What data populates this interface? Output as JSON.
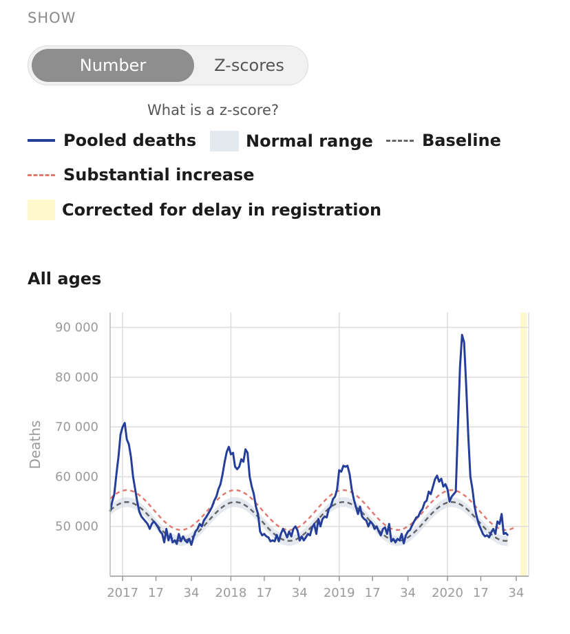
{
  "show_label": "SHOW",
  "toggle": {
    "options": [
      "Number",
      "Z-scores"
    ],
    "selected": "Number"
  },
  "zscore_link": "What is a z-score?",
  "legend": {
    "pooled": "Pooled deaths",
    "normal": "Normal range",
    "baseline": "Baseline",
    "increase": "Substantial increase",
    "corrected": "Corrected for delay in registration"
  },
  "colors": {
    "pooled": "#243e9a",
    "normal": "#e4e8ef",
    "baseline": "#666666",
    "increase": "#e07a70",
    "corrected": "#fff8cc",
    "grid": "#dddddd"
  },
  "chart_title": "All ages",
  "chart_data": {
    "type": "line",
    "title": "All ages",
    "ylabel": "Deaths",
    "xlabel": "",
    "ylim": [
      40000,
      93000
    ],
    "y_ticks": [
      50000,
      60000,
      70000,
      80000,
      90000
    ],
    "y_tick_labels": [
      "50 000",
      "60 000",
      "70 000",
      "80 000",
      "90 000"
    ],
    "x_weeks_per_year": 52,
    "x_ticks": [
      {
        "label": "2017",
        "week": 1
      },
      {
        "label": "17",
        "week": 17
      },
      {
        "label": "34",
        "week": 34
      },
      {
        "label": "2018",
        "week": 53
      },
      {
        "label": "17",
        "week": 69
      },
      {
        "label": "34",
        "week": 86
      },
      {
        "label": "2019",
        "week": 105
      },
      {
        "label": "17",
        "week": 121
      },
      {
        "label": "34",
        "week": 138
      },
      {
        "label": "2020",
        "week": 157
      },
      {
        "label": "17",
        "week": 173
      },
      {
        "label": "34",
        "week": 190
      }
    ],
    "year_gridlines_weeks": [
      1,
      53,
      105,
      157
    ],
    "corrected_range_weeks": [
      192,
      195
    ],
    "series": [
      {
        "name": "Pooled deaths",
        "key": "pooled",
        "points": [
          [
            -5,
            53000
          ],
          [
            -4,
            55000
          ],
          [
            -3,
            56500
          ],
          [
            -2,
            60500
          ],
          [
            -1,
            64000
          ],
          [
            0,
            68500
          ],
          [
            1,
            70000
          ],
          [
            2,
            70800
          ],
          [
            3,
            67500
          ],
          [
            4,
            66500
          ],
          [
            5,
            64000
          ],
          [
            6,
            60000
          ],
          [
            7,
            57500
          ],
          [
            8,
            55000
          ],
          [
            9,
            53000
          ],
          [
            10,
            52000
          ],
          [
            11,
            51500
          ],
          [
            12,
            51000
          ],
          [
            13,
            50500
          ],
          [
            14,
            49500
          ],
          [
            15,
            50500
          ],
          [
            16,
            51000
          ],
          [
            17,
            50500
          ],
          [
            18,
            49800
          ],
          [
            19,
            49000
          ],
          [
            20,
            48500
          ],
          [
            21,
            46800
          ],
          [
            22,
            49500
          ],
          [
            23,
            47200
          ],
          [
            24,
            48500
          ],
          [
            25,
            46800
          ],
          [
            26,
            47200
          ],
          [
            27,
            46500
          ],
          [
            28,
            48500
          ],
          [
            29,
            47000
          ],
          [
            30,
            48000
          ],
          [
            31,
            47200
          ],
          [
            32,
            46800
          ],
          [
            33,
            47500
          ],
          [
            34,
            46300
          ],
          [
            35,
            47800
          ],
          [
            36,
            49000
          ],
          [
            37,
            49500
          ],
          [
            38,
            50500
          ],
          [
            39,
            50000
          ],
          [
            40,
            51200
          ],
          [
            41,
            51800
          ],
          [
            42,
            52500
          ],
          [
            43,
            53200
          ],
          [
            44,
            54000
          ],
          [
            45,
            55200
          ],
          [
            46,
            56000
          ],
          [
            47,
            57500
          ],
          [
            48,
            58500
          ],
          [
            49,
            60500
          ],
          [
            50,
            63000
          ],
          [
            51,
            65000
          ],
          [
            52,
            66000
          ],
          [
            53,
            64500
          ],
          [
            54,
            64800
          ],
          [
            55,
            62000
          ],
          [
            56,
            61500
          ],
          [
            57,
            62000
          ],
          [
            58,
            63500
          ],
          [
            59,
            63000
          ],
          [
            60,
            65500
          ],
          [
            61,
            64800
          ],
          [
            62,
            60000
          ],
          [
            63,
            58000
          ],
          [
            64,
            56500
          ],
          [
            65,
            54000
          ],
          [
            66,
            52500
          ],
          [
            67,
            49000
          ],
          [
            68,
            48200
          ],
          [
            69,
            48500
          ],
          [
            70,
            48000
          ],
          [
            71,
            47800
          ],
          [
            72,
            47000
          ],
          [
            73,
            47200
          ],
          [
            74,
            47000
          ],
          [
            75,
            48300
          ],
          [
            76,
            47000
          ],
          [
            77,
            48500
          ],
          [
            78,
            49500
          ],
          [
            79,
            48800
          ],
          [
            80,
            47800
          ],
          [
            81,
            49000
          ],
          [
            82,
            48000
          ],
          [
            83,
            49500
          ],
          [
            84,
            50000
          ],
          [
            85,
            49200
          ],
          [
            86,
            47200
          ],
          [
            87,
            48000
          ],
          [
            88,
            47200
          ],
          [
            89,
            47800
          ],
          [
            90,
            48500
          ],
          [
            91,
            48200
          ],
          [
            92,
            49800
          ],
          [
            93,
            50500
          ],
          [
            94,
            48500
          ],
          [
            95,
            51500
          ],
          [
            96,
            50000
          ],
          [
            97,
            51500
          ],
          [
            98,
            52000
          ],
          [
            99,
            51800
          ],
          [
            100,
            53500
          ],
          [
            101,
            54000
          ],
          [
            102,
            55500
          ],
          [
            103,
            56000
          ],
          [
            104,
            57500
          ],
          [
            105,
            61300
          ],
          [
            106,
            61000
          ],
          [
            107,
            62200
          ],
          [
            108,
            62000
          ],
          [
            109,
            62200
          ],
          [
            110,
            60500
          ],
          [
            111,
            57500
          ],
          [
            112,
            55500
          ],
          [
            113,
            54000
          ],
          [
            114,
            52500
          ],
          [
            115,
            54000
          ],
          [
            116,
            52000
          ],
          [
            117,
            51500
          ],
          [
            118,
            51200
          ],
          [
            119,
            50000
          ],
          [
            120,
            51000
          ],
          [
            121,
            50500
          ],
          [
            122,
            49500
          ],
          [
            123,
            50000
          ],
          [
            124,
            49000
          ],
          [
            125,
            48200
          ],
          [
            126,
            49500
          ],
          [
            127,
            49800
          ],
          [
            128,
            48500
          ],
          [
            129,
            50500
          ],
          [
            130,
            47000
          ],
          [
            131,
            47500
          ],
          [
            132,
            46800
          ],
          [
            133,
            47500
          ],
          [
            134,
            47200
          ],
          [
            135,
            48500
          ],
          [
            136,
            46600
          ],
          [
            137,
            48200
          ],
          [
            138,
            49000
          ],
          [
            139,
            49300
          ],
          [
            140,
            50200
          ],
          [
            141,
            51000
          ],
          [
            142,
            51800
          ],
          [
            143,
            52000
          ],
          [
            144,
            53000
          ],
          [
            145,
            53500
          ],
          [
            146,
            54800
          ],
          [
            147,
            55200
          ],
          [
            148,
            57000
          ],
          [
            149,
            56500
          ],
          [
            150,
            58000
          ],
          [
            151,
            59500
          ],
          [
            152,
            60200
          ],
          [
            153,
            59000
          ],
          [
            154,
            59600
          ],
          [
            155,
            58000
          ],
          [
            156,
            58500
          ],
          [
            157,
            57500
          ],
          [
            158,
            55000
          ],
          [
            159,
            56000
          ],
          [
            160,
            56500
          ],
          [
            161,
            57000
          ],
          [
            162,
            70000
          ],
          [
            163,
            82000
          ],
          [
            164,
            88500
          ],
          [
            165,
            87000
          ],
          [
            166,
            78000
          ],
          [
            167,
            68000
          ],
          [
            168,
            60000
          ],
          [
            169,
            57500
          ],
          [
            170,
            54000
          ],
          [
            171,
            52000
          ],
          [
            172,
            50500
          ],
          [
            173,
            49500
          ],
          [
            174,
            48500
          ],
          [
            175,
            48000
          ],
          [
            176,
            48200
          ],
          [
            177,
            47800
          ],
          [
            178,
            48800
          ],
          [
            179,
            49500
          ],
          [
            180,
            48500
          ],
          [
            181,
            51000
          ],
          [
            182,
            50500
          ],
          [
            183,
            52500
          ],
          [
            184,
            48500
          ],
          [
            185,
            48700
          ],
          [
            186,
            48200
          ]
        ]
      },
      {
        "name": "Baseline",
        "key": "baseline",
        "peak_week": 3,
        "period_weeks": 52,
        "mean": 51000,
        "amplitude": 3900,
        "x_range": [
          -5,
          186
        ]
      },
      {
        "name": "Substantial increase",
        "key": "increase",
        "peak_week": 3,
        "period_weeks": 52,
        "mean": 53300,
        "amplitude": 4000,
        "x_range": [
          -5,
          189
        ]
      },
      {
        "name": "Normal range",
        "key": "normal",
        "band_halfwidth": 1000
      }
    ]
  }
}
